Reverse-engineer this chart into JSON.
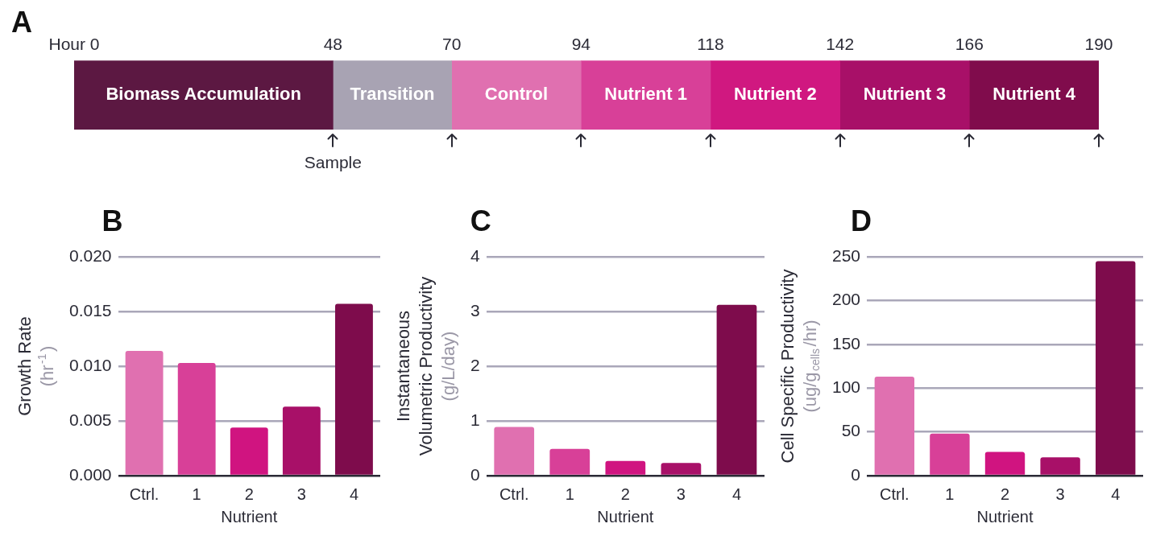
{
  "chart_data": [
    {
      "type": "bar",
      "title": "A",
      "orientation": "horizontal",
      "stacked": true,
      "categories": [
        null
      ],
      "xlim": [
        0,
        190
      ],
      "xticks": [
        {
          "value": 0,
          "label": "Hour 0"
        },
        48,
        70,
        94,
        118,
        142,
        166,
        190
      ],
      "series": [
        {
          "name": "Biomass Accumulation",
          "color": "#5c1842",
          "values": [
            48
          ]
        },
        {
          "name": "Transition",
          "color": "#a8a3b3",
          "values": [
            22
          ]
        },
        {
          "name": "Control",
          "color": "#e070b0",
          "values": [
            24
          ]
        },
        {
          "name": "Nutrient 1",
          "color": "#d84098",
          "values": [
            24
          ]
        },
        {
          "name": "Nutrient 2",
          "color": "#d01880",
          "values": [
            24
          ]
        },
        {
          "name": "Nutrient 3",
          "color": "#a81068",
          "values": [
            24
          ]
        },
        {
          "name": "Nutrient 4",
          "color": "#800c4c",
          "values": [
            24
          ]
        }
      ],
      "annotations": [
        {
          "text": "Sample",
          "x": 48
        }
      ]
    },
    {
      "type": "bar",
      "title": "B",
      "categories": [
        "Ctrl.",
        "1",
        "2",
        "3",
        "4"
      ],
      "values": [
        0.0114,
        0.0103,
        0.0044,
        0.0063,
        0.0157
      ],
      "colors": [
        "#e070b0",
        "#d84098",
        "#d01480",
        "#a81068",
        "#7e0c4c"
      ],
      "xlabel": "Nutrient",
      "ylabel": "Growth Rate\n(hr$^{-1}$)",
      "ylim": [
        0,
        0.02
      ],
      "yticks": [
        {
          "value": 0,
          "label": "0.000"
        },
        {
          "value": 0.005,
          "label": "0.005"
        },
        {
          "value": 0.01,
          "label": "0.010"
        },
        0.015,
        {
          "value": 0.02,
          "label": "0.020"
        }
      ],
      "grid": "y"
    },
    {
      "type": "bar",
      "title": "C",
      "categories": [
        "Ctrl.",
        "1",
        "2",
        "3",
        "4"
      ],
      "values": [
        0.89,
        0.49,
        0.27,
        0.23,
        3.12
      ],
      "colors": [
        "#e070b0",
        "#d84098",
        "#d01480",
        "#a81068",
        "#7e0c4c"
      ],
      "xlabel": "Nutrient",
      "ylabel": "Instantaneous\nVolumetric Productivity\n(g/L/day)",
      "ylim": [
        0,
        4
      ],
      "yticks": [
        0,
        1,
        2,
        3,
        4
      ],
      "grid": "y"
    },
    {
      "type": "bar",
      "title": "D",
      "categories": [
        "Ctrl.",
        "1",
        "2",
        "3",
        "4"
      ],
      "values": [
        113,
        48,
        27,
        21,
        245
      ],
      "colors": [
        "#e070b0",
        "#d84098",
        "#d01480",
        "#a81068",
        "#7e0c4c"
      ],
      "xlabel": "Nutrient",
      "ylabel": "Cell Specific Productivity\n(ug/g$_{cells}$/hr)",
      "ylim": [
        0,
        250
      ],
      "yticks": [
        0,
        50,
        100,
        150,
        200,
        250
      ],
      "grid": "y"
    }
  ]
}
